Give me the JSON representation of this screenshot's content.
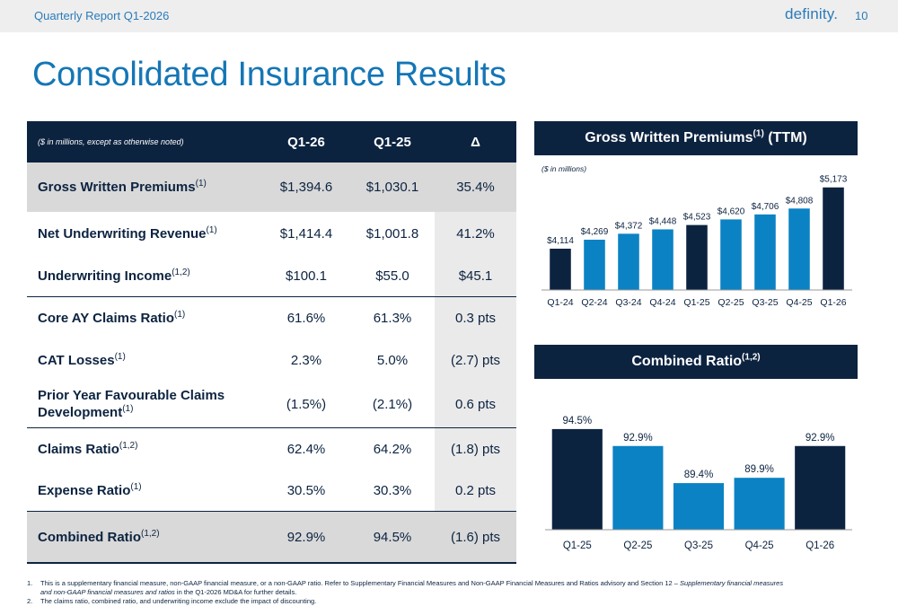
{
  "header": {
    "report_title": "Quarterly Report Q1-2026",
    "logo_text": "definity.",
    "page_number": "10"
  },
  "page_title": "Consolidated Insurance Results",
  "table": {
    "note": "($ in millions, except as otherwise noted)",
    "columns": [
      "Q1-26",
      "Q1-25",
      "Δ"
    ],
    "rows": [
      {
        "label": "Gross Written Premiums",
        "sup": "(1)",
        "values": [
          "$1,394.6",
          "$1,030.1",
          "35.4%"
        ]
      },
      {
        "label": "Net Underwriting Revenue",
        "sup": "(1)",
        "values": [
          "$1,414.4",
          "$1,001.8",
          "41.2%"
        ]
      },
      {
        "label": "Underwriting Income",
        "sup": "(1,2)",
        "values": [
          "$100.1",
          "$55.0",
          "$45.1"
        ]
      },
      {
        "label": "Core AY Claims Ratio",
        "sup": "(1)",
        "values": [
          "61.6%",
          "61.3%",
          "0.3 pts"
        ]
      },
      {
        "label": "CAT Losses",
        "sup": "(1)",
        "values": [
          "2.3%",
          "5.0%",
          "(2.7) pts"
        ]
      },
      {
        "label_line1": "Prior Year Favourable Claims",
        "label_line2": "Development",
        "sup": "(1)",
        "values": [
          "(1.5%)",
          "(2.1%)",
          "0.6 pts"
        ]
      },
      {
        "label": "Claims Ratio",
        "sup": "(1,2)",
        "values": [
          "62.4%",
          "64.2%",
          "(1.8) pts"
        ]
      },
      {
        "label": "Expense Ratio",
        "sup": "(1)",
        "values": [
          "30.5%",
          "30.3%",
          "0.2 pts"
        ]
      },
      {
        "label": "Combined Ratio",
        "sup": "(1,2)",
        "values": [
          "92.9%",
          "94.5%",
          "(1.6) pts"
        ]
      }
    ]
  },
  "gwp_panel": {
    "title": "Gross Written Premiums",
    "sup": "(1)",
    "suffix": " (TTM)"
  },
  "cr_panel": {
    "title": "Combined Ratio",
    "sup": "(1,2)"
  },
  "footnotes": [
    {
      "num": "1.",
      "text_a": "This is a supplementary financial measure, non-GAAP financial measure, or a non-GAAP ratio. Refer to Supplementary Financial Measures and Non-GAAP Financial Measures and Ratios advisory and Section 12 – ",
      "text_b": "Supplementary financial measures",
      "text_c": "and non-GAAP financial measures and ratios",
      "text_d": " in the Q1-2026 MD&A for further details."
    },
    {
      "num": "2.",
      "text": "The claims ratio, combined ratio, and underwriting income exclude the impact of discounting."
    }
  ],
  "colors": {
    "navy": "#0c2340",
    "blue": "#0b82c4",
    "accent": "#1476b6"
  },
  "chart_data": [
    {
      "type": "bar",
      "title": "Gross Written Premiums(1) (TTM)",
      "unit_note": "($ in millions)",
      "categories": [
        "Q1-24",
        "Q2-24",
        "Q3-24",
        "Q4-24",
        "Q1-25",
        "Q2-25",
        "Q3-25",
        "Q4-25",
        "Q1-26"
      ],
      "values": [
        4114,
        4269,
        4372,
        4448,
        4523,
        4620,
        4706,
        4808,
        5173
      ],
      "labels": [
        "$4,114",
        "$4,269",
        "$4,372",
        "$4,448",
        "$4,523",
        "$4,620",
        "$4,706",
        "$4,808",
        "$5,173"
      ],
      "highlight": [
        0,
        4,
        8
      ],
      "ylim": [
        3400,
        5200
      ]
    },
    {
      "type": "bar",
      "title": "Combined Ratio(1,2)",
      "categories": [
        "Q1-25",
        "Q2-25",
        "Q3-25",
        "Q4-25",
        "Q1-26"
      ],
      "values": [
        94.5,
        92.9,
        89.4,
        89.9,
        92.9
      ],
      "labels": [
        "94.5%",
        "92.9%",
        "89.4%",
        "89.9%",
        "92.9%"
      ],
      "highlight": [
        0,
        4
      ],
      "ylim": [
        85,
        95
      ]
    }
  ]
}
